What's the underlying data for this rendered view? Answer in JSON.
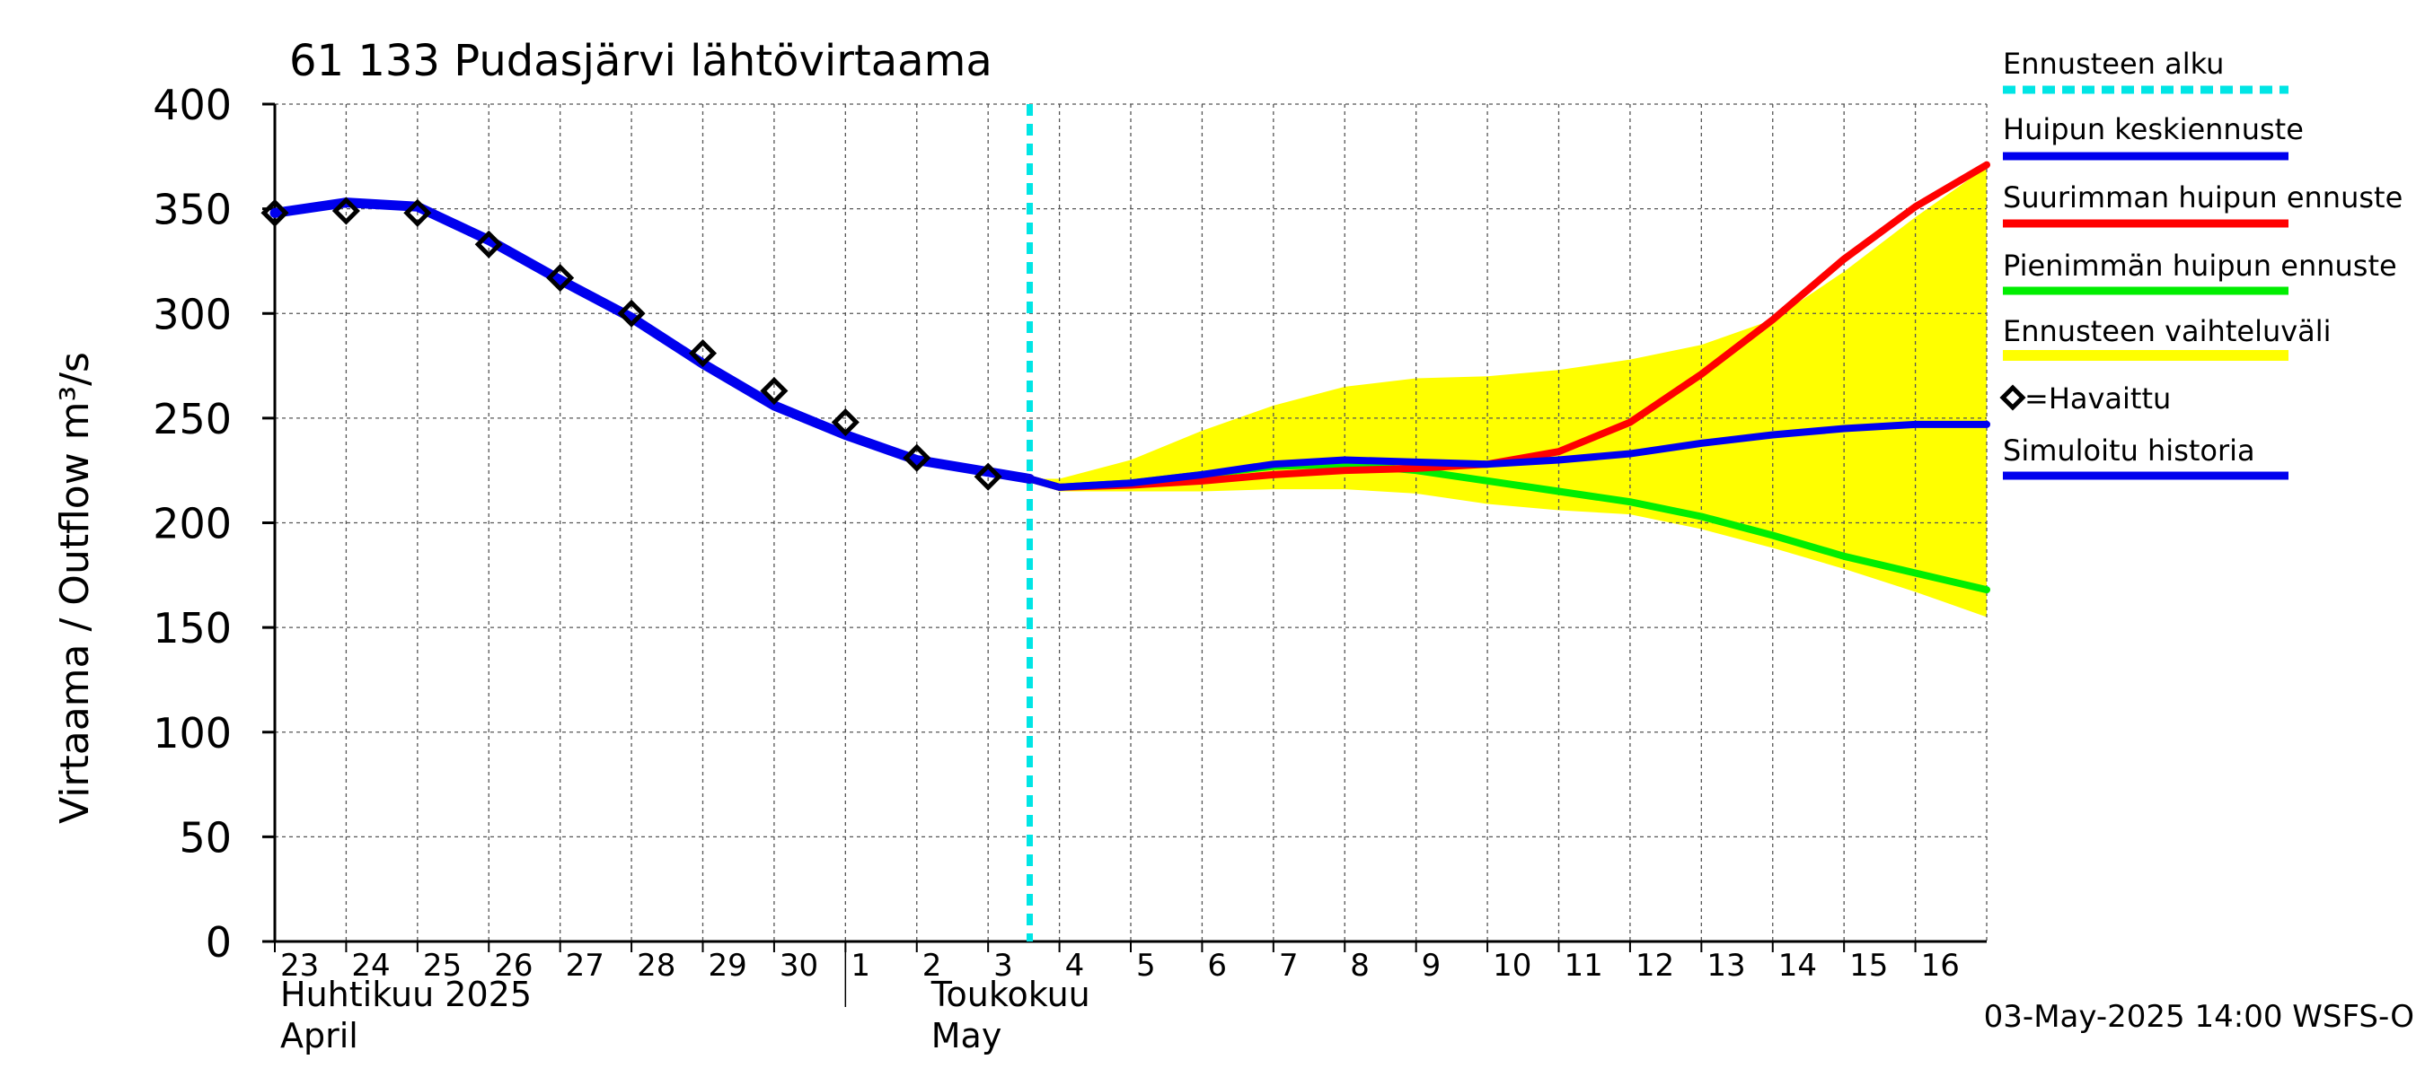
{
  "chart_data": {
    "type": "line",
    "title": "61 133 Pudasjärvi lähtövirtaama",
    "ylabel": "Virtaama / Outflow    m³/s",
    "ylim": [
      0,
      400
    ],
    "yticks": [
      0,
      50,
      100,
      150,
      200,
      250,
      300,
      350,
      400
    ],
    "xlim": [
      "2025-04-23",
      "2025-05-17"
    ],
    "x_tick_labels": [
      "23",
      "24",
      "25",
      "26",
      "27",
      "28",
      "29",
      "30",
      "1",
      "2",
      "3",
      "4",
      "5",
      "6",
      "7",
      "8",
      "9",
      "10",
      "11",
      "12",
      "13",
      "14",
      "15",
      "16"
    ],
    "month_labels": [
      {
        "line1": "Huhtikuu  2025",
        "line2": "April"
      },
      {
        "line1": "Toukokuu",
        "line2": "May"
      }
    ],
    "forecast_start": "2025-05-03T14:00",
    "footer": "03-May-2025 14:00 WSFS-O",
    "grid": true,
    "legend_position": "right",
    "legend": [
      {
        "label": "Ennusteen alku",
        "color": "#00e5e5",
        "style": "dashed"
      },
      {
        "label": "Huipun keskiennuste",
        "color": "#0000ee",
        "style": "line"
      },
      {
        "label": "Suurimman huipun ennuste",
        "color": "#ff0000",
        "style": "line"
      },
      {
        "label": "Pienimmän huipun ennuste",
        "color": "#00ee00",
        "style": "line"
      },
      {
        "label": "Ennusteen vaihteluväli",
        "color": "#ffff00",
        "style": "band"
      },
      {
        "label": "=Havaittu",
        "color": "#000000",
        "style": "diamond"
      },
      {
        "label": "Simuloitu historia",
        "color": "#0000ee",
        "style": "line"
      }
    ],
    "series": [
      {
        "name": "Simuloitu historia",
        "color": "#0000ee",
        "x": [
          "2025-04-23",
          "2025-04-24",
          "2025-04-25",
          "2025-04-26",
          "2025-04-27",
          "2025-04-28",
          "2025-04-29",
          "2025-04-30",
          "2025-05-01",
          "2025-05-02",
          "2025-05-03T14:00"
        ],
        "values": [
          348,
          353,
          351,
          335,
          316,
          298,
          276,
          256,
          242,
          230,
          221
        ]
      },
      {
        "name": "Huipun keskiennuste",
        "color": "#0000ee",
        "x": [
          "2025-05-03T14:00",
          "2025-05-04",
          "2025-05-05",
          "2025-05-06",
          "2025-05-07",
          "2025-05-08",
          "2025-05-09",
          "2025-05-10",
          "2025-05-11",
          "2025-05-12",
          "2025-05-13",
          "2025-05-14",
          "2025-05-15",
          "2025-05-16",
          "2025-05-17"
        ],
        "values": [
          221,
          217,
          219,
          223,
          228,
          230,
          229,
          228,
          230,
          233,
          238,
          242,
          245,
          247,
          247
        ]
      },
      {
        "name": "Suurimman huipun ennuste",
        "color": "#ff0000",
        "x": [
          "2025-05-03T14:00",
          "2025-05-04",
          "2025-05-05",
          "2025-05-06",
          "2025-05-07",
          "2025-05-08",
          "2025-05-09",
          "2025-05-10",
          "2025-05-11",
          "2025-05-12",
          "2025-05-13",
          "2025-05-14",
          "2025-05-15",
          "2025-05-16",
          "2025-05-17"
        ],
        "values": [
          221,
          217,
          218,
          220,
          223,
          225,
          226,
          228,
          234,
          248,
          271,
          297,
          326,
          351,
          371
        ]
      },
      {
        "name": "Pienimmän huipun ennuste",
        "color": "#00ee00",
        "x": [
          "2025-05-03T14:00",
          "2025-05-04",
          "2025-05-05",
          "2025-05-06",
          "2025-05-07",
          "2025-05-08",
          "2025-05-09",
          "2025-05-10",
          "2025-05-11",
          "2025-05-12",
          "2025-05-13",
          "2025-05-14",
          "2025-05-15",
          "2025-05-16",
          "2025-05-17"
        ],
        "values": [
          221,
          217,
          219,
          223,
          227,
          228,
          225,
          220,
          215,
          210,
          203,
          194,
          184,
          176,
          168
        ]
      }
    ],
    "band": {
      "name": "Ennusteen vaihteluväli",
      "color": "#ffff00",
      "x": [
        "2025-05-03T14:00",
        "2025-05-04",
        "2025-05-05",
        "2025-05-06",
        "2025-05-07",
        "2025-05-08",
        "2025-05-09",
        "2025-05-10",
        "2025-05-11",
        "2025-05-12",
        "2025-05-13",
        "2025-05-14",
        "2025-05-15",
        "2025-05-16",
        "2025-05-17"
      ],
      "upper": [
        221,
        221,
        230,
        244,
        256,
        265,
        269,
        270,
        273,
        278,
        285,
        297,
        320,
        346,
        370
      ],
      "lower": [
        221,
        215,
        215,
        215,
        216,
        216,
        214,
        209,
        206,
        204,
        197,
        188,
        178,
        167,
        155
      ]
    },
    "observed": {
      "name": "Havaittu",
      "x": [
        "2025-04-23",
        "2025-04-24",
        "2025-04-25",
        "2025-04-26",
        "2025-04-27",
        "2025-04-28",
        "2025-04-29",
        "2025-04-30",
        "2025-05-01",
        "2025-05-02",
        "2025-05-03"
      ],
      "values": [
        348,
        349,
        348,
        333,
        317,
        300,
        281,
        263,
        248,
        231,
        222
      ]
    }
  }
}
